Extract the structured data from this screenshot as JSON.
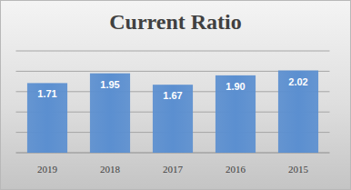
{
  "chart_data": {
    "type": "bar",
    "title": "Current Ratio",
    "categories": [
      "2019",
      "2018",
      "2017",
      "2016",
      "2015"
    ],
    "values": [
      1.71,
      1.95,
      1.67,
      1.9,
      2.02
    ],
    "value_labels": [
      "1.71",
      "1.95",
      "1.67",
      "1.90",
      "2.02"
    ],
    "color": "#5b8fd0",
    "ylim": [
      0,
      2.5
    ],
    "yticks": [
      0,
      0.5,
      1,
      1.5,
      2,
      2.5
    ],
    "grid": true,
    "data_labels": true,
    "tick_labels": "x"
  }
}
